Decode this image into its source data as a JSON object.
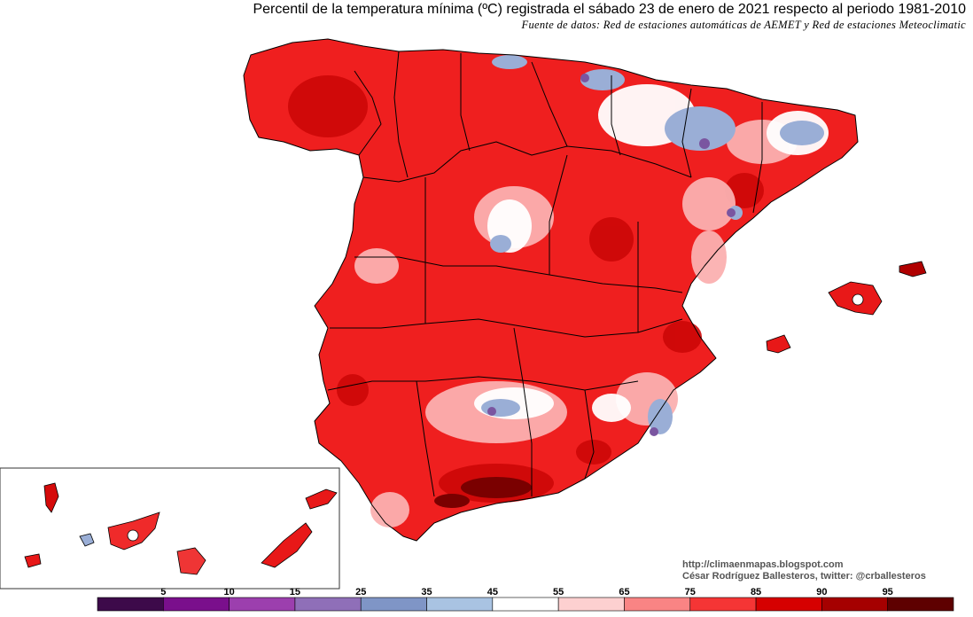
{
  "title": "Percentil de la temperatura mínima (ºC) registrada el sábado 23 de enero de 2021 respecto al periodo 1981-2010",
  "subtitle": "Fuente de datos: Red de estaciones automáticas de AEMET y Red de estaciones Meteoclimatic",
  "credits": {
    "url": "http://climaenmapas.blogspot.com",
    "author": "César Rodríguez Ballesteros, twitter: @crballesteros"
  },
  "legend": {
    "tick_labels": [
      "5",
      "10",
      "15",
      "25",
      "35",
      "45",
      "55",
      "65",
      "75",
      "85",
      "90",
      "95"
    ],
    "colors": [
      "#3d0a4a",
      "#7a0f8c",
      "#9c3fae",
      "#8f6fb8",
      "#7f95c6",
      "#a9c3e2",
      "#ffffff",
      "#fdd0d0",
      "#f98484",
      "#f53535",
      "#d60000",
      "#a50000",
      "#5e0000"
    ]
  },
  "colors": {
    "dominant_warm": "#f02020",
    "cool_anomaly": "#9aaed6",
    "border": "#000000"
  }
}
